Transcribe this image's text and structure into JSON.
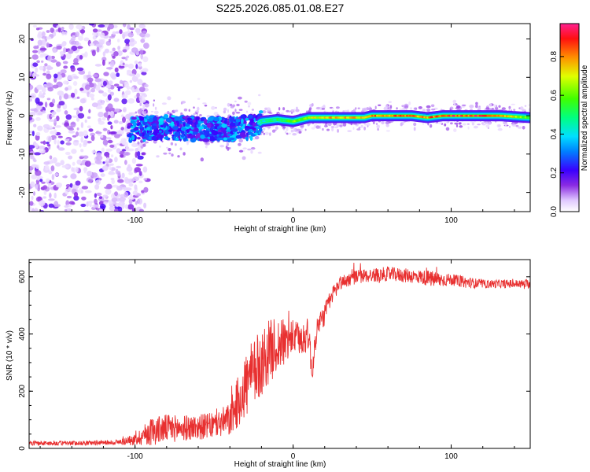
{
  "title": "S225.2026.085.01.08.E27",
  "chart_data": [
    {
      "type": "heatmap",
      "name": "spectrogram",
      "xlabel": "Height of straight line (km)",
      "ylabel": "Frequency (Hz)",
      "xlim": [
        -167,
        150
      ],
      "ylim": [
        -25,
        24
      ],
      "xticks": [
        -100,
        0,
        100
      ],
      "xtick_labels": [
        "-100",
        "0",
        "100"
      ],
      "yticks": [
        -20,
        -10,
        0,
        10,
        20
      ],
      "ytick_labels": [
        "-20",
        "-10",
        "0",
        "10",
        "20"
      ],
      "colorbar": {
        "label": "Normalized spectral amplitude",
        "ticks": [
          0.0,
          0.2,
          0.4,
          0.6,
          0.8
        ],
        "tick_labels": [
          "0.0",
          "0.2",
          "0.4",
          "0.6",
          "0.8"
        ],
        "range": [
          0,
          0.97
        ]
      },
      "noise_region_x": [
        -167,
        -100
      ],
      "signal_track": [
        {
          "x": -100,
          "freq": -3.5,
          "amp": 0.25
        },
        {
          "x": -80,
          "freq": -3.0,
          "amp": 0.3
        },
        {
          "x": -60,
          "freq": -3.5,
          "amp": 0.3
        },
        {
          "x": -40,
          "freq": -3.5,
          "amp": 0.3
        },
        {
          "x": -25,
          "freq": -3.0,
          "amp": 0.3
        },
        {
          "x": -20,
          "freq": -1.5,
          "amp": 0.45
        },
        {
          "x": -10,
          "freq": -1.0,
          "amp": 0.5
        },
        {
          "x": 0,
          "freq": -1.5,
          "amp": 0.6
        },
        {
          "x": 10,
          "freq": -0.5,
          "amp": 0.7
        },
        {
          "x": 25,
          "freq": -0.5,
          "amp": 0.8
        },
        {
          "x": 45,
          "freq": -0.5,
          "amp": 0.8
        },
        {
          "x": 50,
          "freq": 0.0,
          "amp": 0.85
        },
        {
          "x": 75,
          "freq": 0.0,
          "amp": 0.85
        },
        {
          "x": 85,
          "freq": -0.5,
          "amp": 0.8
        },
        {
          "x": 95,
          "freq": 0.0,
          "amp": 0.9
        },
        {
          "x": 130,
          "freq": 0.0,
          "amp": 0.9
        },
        {
          "x": 150,
          "freq": -0.5,
          "amp": 0.6
        }
      ]
    },
    {
      "type": "line",
      "name": "snr",
      "xlabel": "Height of straight line (km)",
      "ylabel": "SNR (10 * v/v)",
      "xlim": [
        -167,
        150
      ],
      "ylim": [
        0,
        660
      ],
      "xticks": [
        -100,
        0,
        100
      ],
      "xtick_labels": [
        "-100",
        "0",
        "100"
      ],
      "yticks": [
        0,
        200,
        400,
        600
      ],
      "ytick_labels": [
        "0",
        "200",
        "400",
        "600"
      ],
      "color": "#e83030",
      "x": [
        -167,
        -140,
        -120,
        -110,
        -100,
        -90,
        -80,
        -70,
        -60,
        -50,
        -40,
        -35,
        -30,
        -25,
        -20,
        -15,
        -10,
        -5,
        0,
        5,
        10,
        12,
        15,
        20,
        25,
        30,
        40,
        50,
        60,
        70,
        80,
        90,
        100,
        110,
        120,
        130,
        140,
        150
      ],
      "y": [
        18,
        18,
        20,
        22,
        30,
        60,
        70,
        70,
        75,
        80,
        100,
        160,
        220,
        260,
        300,
        340,
        360,
        370,
        390,
        380,
        400,
        260,
        420,
        470,
        540,
        580,
        600,
        605,
        610,
        605,
        600,
        590,
        590,
        580,
        575,
        575,
        575,
        575
      ],
      "spread": [
        8,
        8,
        8,
        10,
        20,
        50,
        50,
        45,
        45,
        45,
        60,
        90,
        120,
        120,
        120,
        110,
        100,
        80,
        60,
        60,
        60,
        40,
        40,
        40,
        30,
        25,
        25,
        25,
        25,
        25,
        25,
        30,
        20,
        20,
        15,
        15,
        15,
        15
      ]
    }
  ]
}
